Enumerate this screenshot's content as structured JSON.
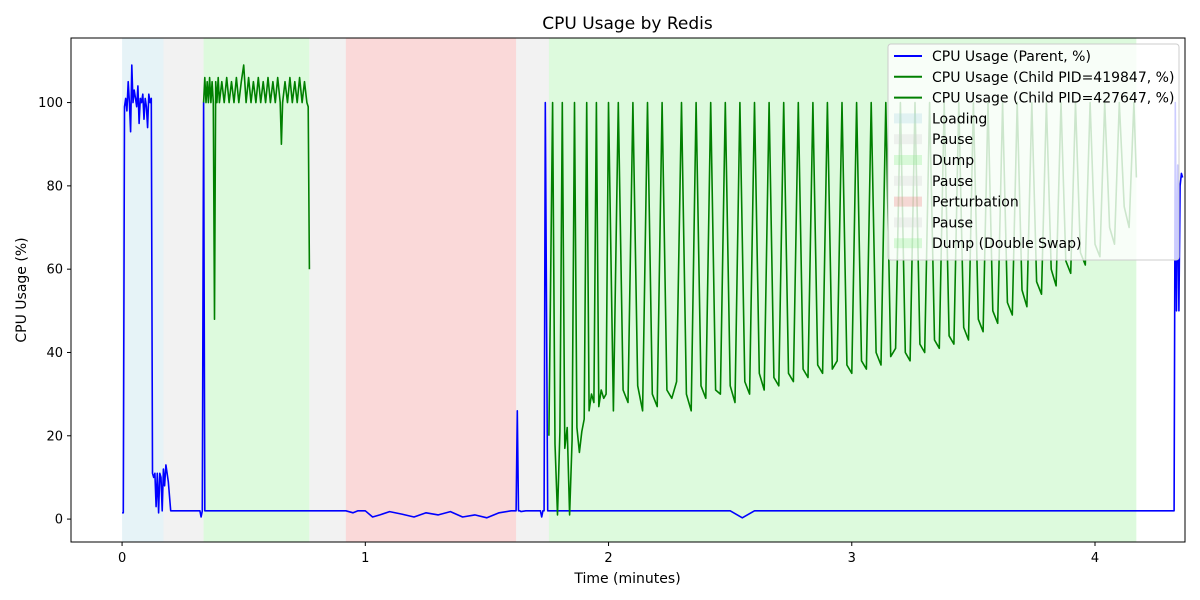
{
  "chart_data": {
    "type": "line",
    "title": "CPU Usage by Redis",
    "xlabel": "Time (minutes)",
    "ylabel": "CPU Usage (%)",
    "xlim": [
      -0.21,
      4.37
    ],
    "ylim": [
      -5.5,
      115.5
    ],
    "x_ticks": [
      0,
      1,
      2,
      3,
      4
    ],
    "y_ticks": [
      0,
      20,
      40,
      60,
      80,
      100
    ],
    "grid": false,
    "legend_position": "top-right",
    "regions": [
      {
        "label": "Loading",
        "start": 0.0,
        "end": 0.17,
        "color": "#add8e6"
      },
      {
        "label": "Pause",
        "start": 0.17,
        "end": 0.335,
        "color": "#d3d3d3"
      },
      {
        "label": "Dump",
        "start": 0.335,
        "end": 0.77,
        "color": "#90ee90"
      },
      {
        "label": "Pause",
        "start": 0.77,
        "end": 0.92,
        "color": "#d3d3d3"
      },
      {
        "label": "Perturbation",
        "start": 0.92,
        "end": 1.62,
        "color": "#f08080"
      },
      {
        "label": "Pause",
        "start": 1.62,
        "end": 1.755,
        "color": "#d3d3d3"
      },
      {
        "label": "Dump (Double Swap)",
        "start": 1.755,
        "end": 4.17,
        "color": "#90ee90"
      }
    ],
    "series": [
      {
        "name": "CPU Usage (Parent, %)",
        "color": "#0000ff",
        "x": [
          0.0,
          0.005,
          0.01,
          0.015,
          0.02,
          0.025,
          0.03,
          0.035,
          0.04,
          0.045,
          0.05,
          0.055,
          0.06,
          0.065,
          0.07,
          0.075,
          0.08,
          0.085,
          0.09,
          0.095,
          0.1,
          0.105,
          0.11,
          0.115,
          0.12,
          0.125,
          0.13,
          0.135,
          0.14,
          0.145,
          0.15,
          0.155,
          0.16,
          0.165,
          0.17,
          0.175,
          0.18,
          0.185,
          0.19,
          0.2,
          0.21,
          0.25,
          0.3,
          0.32,
          0.325,
          0.33,
          0.335,
          0.34,
          0.35,
          0.4,
          0.45,
          0.5,
          0.55,
          0.6,
          0.65,
          0.7,
          0.75,
          0.8,
          0.85,
          0.9,
          0.92,
          0.95,
          0.97,
          1.0,
          1.03,
          1.06,
          1.1,
          1.15,
          1.2,
          1.25,
          1.3,
          1.35,
          1.4,
          1.45,
          1.5,
          1.55,
          1.6,
          1.62,
          1.625,
          1.63,
          1.635,
          1.64,
          1.66,
          1.7,
          1.72,
          1.725,
          1.73,
          1.735,
          1.74,
          1.75,
          1.8,
          1.9,
          2.0,
          2.1,
          2.2,
          2.3,
          2.4,
          2.5,
          2.55,
          2.6,
          2.7,
          2.8,
          2.9,
          3.0,
          3.1,
          3.2,
          3.3,
          3.4,
          3.5,
          3.6,
          3.7,
          3.8,
          3.9,
          4.0,
          4.1,
          4.2,
          4.3,
          4.325,
          4.33,
          4.335,
          4.34,
          4.345,
          4.35,
          4.355,
          4.36
        ],
        "y": [
          1.5,
          1.5,
          99,
          101,
          98,
          105,
          100,
          93,
          109,
          100,
          103,
          101,
          99,
          104,
          95,
          101,
          100,
          102,
          96,
          101,
          99,
          94,
          102,
          100,
          101,
          11,
          10,
          11,
          3,
          11,
          1.5,
          11,
          10,
          2,
          12,
          8,
          13,
          11,
          9,
          2,
          2,
          2,
          2,
          2,
          0.5,
          2,
          100,
          2,
          2,
          2,
          2,
          2,
          2,
          2,
          2,
          2,
          2,
          2,
          2,
          2,
          2,
          1.5,
          2,
          2,
          0.5,
          1,
          1.8,
          1.2,
          0.5,
          1.5,
          1,
          1.8,
          0.5,
          1,
          0.3,
          1.5,
          2,
          2,
          26,
          2,
          2,
          1.8,
          2,
          2,
          2,
          0.5,
          2,
          2,
          100,
          2,
          2,
          2,
          2,
          2,
          2,
          2,
          2,
          2,
          0.3,
          2,
          2,
          2,
          2,
          2,
          2,
          2,
          2,
          2,
          2,
          2,
          2,
          2,
          2,
          2,
          2,
          2,
          2,
          2,
          100,
          50,
          85,
          50,
          80,
          83,
          82
        ]
      },
      {
        "name": "CPU Usage (Child PID=419847, %)",
        "color": "#008000",
        "x": [
          0.335,
          0.34,
          0.345,
          0.35,
          0.355,
          0.36,
          0.365,
          0.37,
          0.375,
          0.38,
          0.385,
          0.39,
          0.395,
          0.4,
          0.41,
          0.42,
          0.43,
          0.44,
          0.45,
          0.46,
          0.47,
          0.48,
          0.49,
          0.5,
          0.51,
          0.52,
          0.53,
          0.54,
          0.55,
          0.56,
          0.57,
          0.58,
          0.59,
          0.6,
          0.61,
          0.62,
          0.63,
          0.64,
          0.65,
          0.655,
          0.66,
          0.67,
          0.68,
          0.69,
          0.7,
          0.71,
          0.72,
          0.73,
          0.74,
          0.75,
          0.76,
          0.765,
          0.77
        ],
        "y": [
          100,
          106,
          100,
          105,
          100,
          106,
          100,
          105,
          100,
          48,
          105,
          100,
          106,
          100,
          105,
          100,
          106,
          100,
          105,
          100,
          106,
          100,
          105,
          109,
          100,
          106,
          100,
          105,
          100,
          106,
          100,
          105,
          100,
          106,
          100,
          105,
          100,
          106,
          100,
          90,
          100,
          105,
          100,
          106,
          100,
          105,
          100,
          106,
          100,
          105,
          100,
          99,
          60
        ]
      },
      {
        "name": "CPU Usage (Child PID=427647, %)",
        "color": "#008000",
        "x": [
          1.755,
          1.77,
          1.78,
          1.79,
          1.8,
          1.81,
          1.82,
          1.83,
          1.84,
          1.85,
          1.86,
          1.87,
          1.88,
          1.89,
          1.9,
          1.91,
          1.92,
          1.93,
          1.94,
          1.95,
          1.96,
          1.97,
          1.98,
          1.99,
          2.0,
          2.02,
          2.04,
          2.06,
          2.08,
          2.1,
          2.12,
          2.14,
          2.16,
          2.18,
          2.2,
          2.22,
          2.24,
          2.26,
          2.28,
          2.3,
          2.32,
          2.34,
          2.36,
          2.38,
          2.4,
          2.42,
          2.44,
          2.46,
          2.48,
          2.5,
          2.52,
          2.54,
          2.56,
          2.58,
          2.6,
          2.62,
          2.64,
          2.66,
          2.68,
          2.7,
          2.72,
          2.74,
          2.76,
          2.78,
          2.8,
          2.82,
          2.84,
          2.86,
          2.88,
          2.9,
          2.92,
          2.94,
          2.96,
          2.98,
          3.0,
          3.02,
          3.04,
          3.06,
          3.08,
          3.1,
          3.12,
          3.14,
          3.16,
          3.18,
          3.2,
          3.22,
          3.24,
          3.26,
          3.28,
          3.3,
          3.32,
          3.34,
          3.36,
          3.38,
          3.4,
          3.42,
          3.44,
          3.46,
          3.48,
          3.5,
          3.52,
          3.54,
          3.56,
          3.58,
          3.6,
          3.62,
          3.64,
          3.66,
          3.68,
          3.7,
          3.72,
          3.74,
          3.76,
          3.78,
          3.8,
          3.82,
          3.84,
          3.86,
          3.88,
          3.9,
          3.92,
          3.94,
          3.96,
          3.98,
          4.0,
          4.02,
          4.04,
          4.06,
          4.08,
          4.1,
          4.12,
          4.14,
          4.16,
          4.17
        ],
        "y": [
          20,
          100,
          18,
          1,
          21,
          100,
          17,
          22,
          1,
          19,
          100,
          22,
          16,
          21,
          24,
          100,
          26,
          30,
          28,
          100,
          27,
          31,
          29,
          30,
          100,
          26,
          100,
          31,
          28,
          100,
          32,
          26,
          100,
          30,
          27,
          100,
          31,
          29,
          33,
          100,
          30,
          26,
          100,
          32,
          29,
          100,
          31,
          30,
          100,
          32,
          28,
          100,
          33,
          30,
          100,
          35,
          31,
          100,
          34,
          32,
          100,
          35,
          33,
          100,
          36,
          34,
          100,
          37,
          35,
          100,
          36,
          38,
          100,
          37,
          35,
          100,
          38,
          36,
          100,
          40,
          37,
          100,
          39,
          41,
          100,
          40,
          38,
          100,
          42,
          40,
          100,
          43,
          41,
          100,
          44,
          42,
          100,
          46,
          43,
          100,
          48,
          45,
          100,
          50,
          47,
          100,
          52,
          49,
          100,
          55,
          51,
          100,
          57,
          54,
          100,
          60,
          56,
          100,
          62,
          59,
          100,
          64,
          61,
          100,
          66,
          63,
          100,
          70,
          66,
          100,
          75,
          70,
          100,
          82
        ]
      }
    ]
  }
}
